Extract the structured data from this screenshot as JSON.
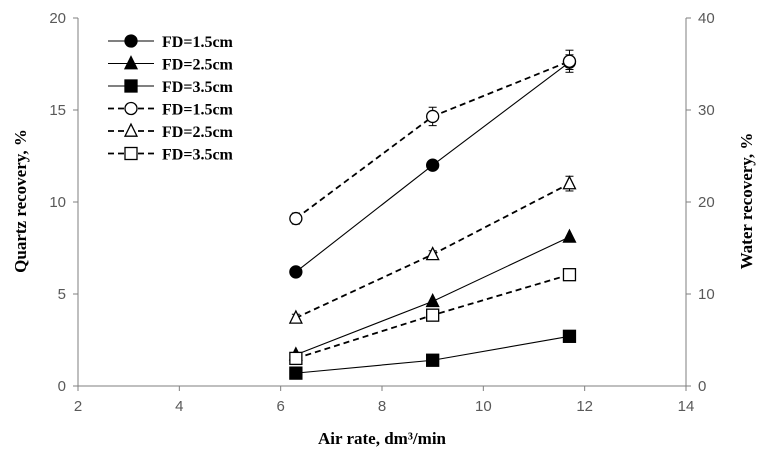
{
  "chart_data": {
    "type": "line",
    "xlabel": "Air rate, dm³/min",
    "ylabel_left": "Quartz recovery, %",
    "ylabel_right": "Water recovery, %",
    "xlim": [
      2,
      14
    ],
    "ylim_left": [
      0,
      20
    ],
    "ylim_right": [
      0,
      40
    ],
    "xticks": [
      "2",
      "4",
      "6",
      "8",
      "10",
      "12",
      "14"
    ],
    "yticks_left": [
      "0",
      "5",
      "10",
      "15",
      "20"
    ],
    "yticks_right": [
      "0",
      "10",
      "20",
      "30",
      "40"
    ],
    "grid": false,
    "legend_position": "top-left",
    "series": [
      {
        "name": "FD=1.5cm",
        "axis": "left",
        "marker": "circle",
        "filled": true,
        "dashed": false,
        "x": [
          6.3,
          9.0,
          11.7
        ],
        "y": [
          6.2,
          12.0,
          17.6
        ],
        "err": [
          0,
          0,
          0.4
        ]
      },
      {
        "name": "FD=2.5cm",
        "axis": "left",
        "marker": "triangle",
        "filled": true,
        "dashed": false,
        "x": [
          6.3,
          9.0,
          11.7
        ],
        "y": [
          1.7,
          4.6,
          8.1
        ],
        "err": [
          0,
          0,
          0
        ]
      },
      {
        "name": "FD=3.5cm",
        "axis": "left",
        "marker": "square",
        "filled": true,
        "dashed": false,
        "x": [
          6.3,
          9.0,
          11.7
        ],
        "y": [
          0.7,
          1.4,
          2.7
        ],
        "err": [
          0,
          0,
          0
        ]
      },
      {
        "name": "FD=1.5cm",
        "axis": "right",
        "marker": "circle",
        "filled": false,
        "dashed": true,
        "x": [
          6.3,
          9.0,
          11.7
        ],
        "y": [
          18.2,
          29.3,
          35.3
        ],
        "err": [
          0.6,
          1.0,
          1.2
        ]
      },
      {
        "name": "FD=2.5cm",
        "axis": "right",
        "marker": "triangle",
        "filled": false,
        "dashed": true,
        "x": [
          6.3,
          9.0,
          11.7
        ],
        "y": [
          7.4,
          14.3,
          22.0
        ],
        "err": [
          0.4,
          0.4,
          0.8
        ]
      },
      {
        "name": "FD=3.5cm",
        "axis": "right",
        "marker": "square",
        "filled": false,
        "dashed": true,
        "x": [
          6.3,
          9.0,
          11.7
        ],
        "y": [
          3.0,
          7.7,
          12.1
        ],
        "err": [
          0,
          0,
          0
        ]
      }
    ]
  }
}
